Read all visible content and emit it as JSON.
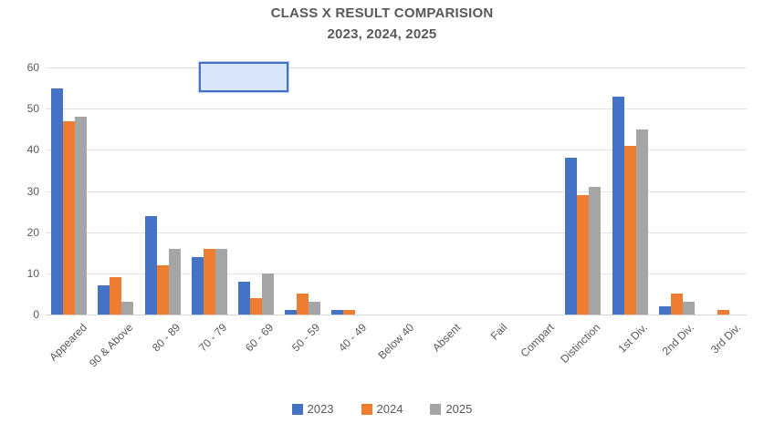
{
  "chart_data": {
    "type": "bar",
    "title": "CLASS X RESULT COMPARISION",
    "subtitle": "2023, 2024, 2025",
    "categories": [
      "Appeared",
      "90 & Above",
      "80 - 89",
      "70 - 79",
      "60 - 69",
      "50 - 59",
      "40 - 49",
      "Below 40",
      "Absent",
      "Fail",
      "Compart",
      "Distinction",
      "1st Div.",
      "2nd Div.",
      "3rd Div."
    ],
    "series": [
      {
        "name": "2023",
        "color": "#4472C4",
        "values": [
          55,
          7,
          24,
          14,
          8,
          1,
          1,
          0,
          0,
          0,
          0,
          38,
          53,
          2,
          0
        ]
      },
      {
        "name": "2024",
        "color": "#ED7D31",
        "values": [
          47,
          9,
          12,
          16,
          4,
          5,
          1,
          0,
          0,
          0,
          0,
          29,
          41,
          5,
          1
        ]
      },
      {
        "name": "2025",
        "color": "#A5A5A5",
        "values": [
          48,
          3,
          16,
          16,
          10,
          3,
          0,
          0,
          0,
          0,
          0,
          31,
          45,
          3,
          0
        ]
      }
    ],
    "xlabel": "",
    "ylabel": "",
    "ylim": [
      0,
      60
    ],
    "yticks": [
      0,
      10,
      20,
      30,
      40,
      50,
      60
    ],
    "grid": true,
    "legend_position": "bottom"
  },
  "annotations": {
    "selection_box": {
      "fill": "#D9E5F8",
      "border": "#4472C4"
    }
  },
  "colors": {
    "background": "#FFFFFF",
    "text": "#595959",
    "gridline": "#E2E2E2"
  }
}
